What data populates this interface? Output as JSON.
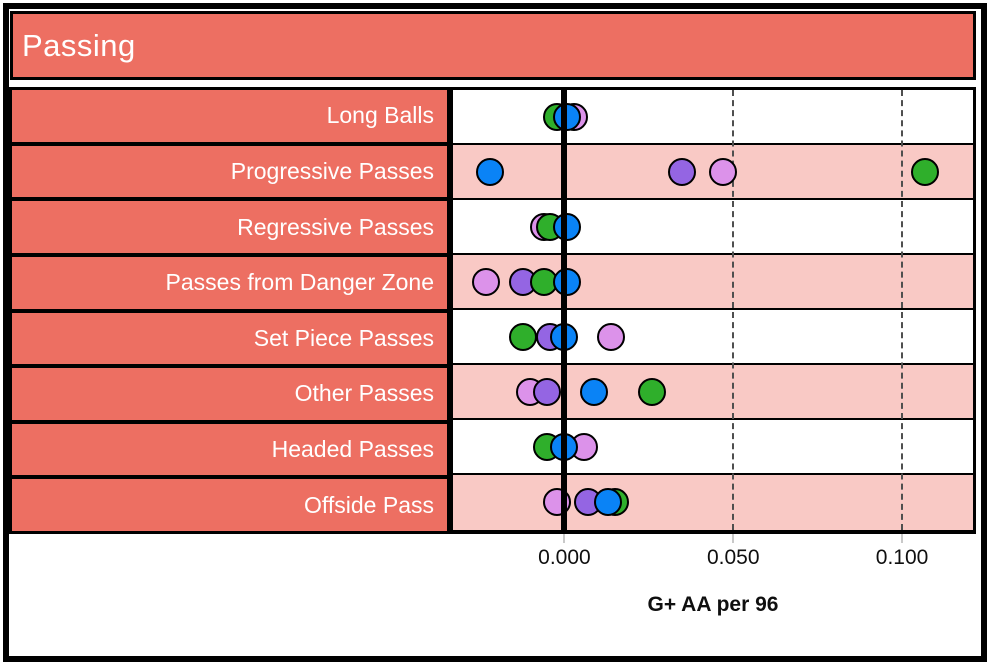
{
  "header": {
    "title": "Passing"
  },
  "colors": {
    "salmon": "#ED6F62",
    "stripe_pink": "#F9C9C5",
    "stripe_white": "#FFFFFF",
    "border_black": "#000000",
    "gridline_gray": "#4F4F4F",
    "series": {
      "blue": "#0A83F6",
      "purple": "#9465E3",
      "plum": "#DC92EA",
      "green": "#2FAF2B"
    }
  },
  "axis": {
    "title": "G+ AA per 96",
    "ticks": [
      {
        "label": "0.000",
        "value": 0.0
      },
      {
        "label": "0.050",
        "value": 0.05
      },
      {
        "label": "0.100",
        "value": 0.1
      }
    ],
    "xmin": -0.033,
    "xmax": 0.121
  },
  "chart_data": {
    "type": "scatter",
    "subtype": "dot-strip-plot",
    "title": "Passing",
    "xlabel": "G+ AA per 96",
    "xlim": [
      -0.033,
      0.121
    ],
    "grid": "vertical-dashed-at-0.050-and-0.100",
    "zero_reference_line": true,
    "categories": [
      "Long Balls",
      "Progressive Passes",
      "Regressive Passes",
      "Passes from Danger Zone",
      "Set Piece Passes",
      "Other Passes",
      "Headed Passes",
      "Offside Pass"
    ],
    "rows": [
      {
        "label": "Long Balls",
        "dots": [
          {
            "series": "green",
            "value": -0.002
          },
          {
            "series": "plum",
            "value": 0.003
          },
          {
            "series": "blue",
            "value": 0.001
          }
        ]
      },
      {
        "label": "Progressive Passes",
        "dots": [
          {
            "series": "blue",
            "value": -0.022
          },
          {
            "series": "purple",
            "value": 0.035
          },
          {
            "series": "plum",
            "value": 0.047
          },
          {
            "series": "green",
            "value": 0.107
          }
        ]
      },
      {
        "label": "Regressive Passes",
        "dots": [
          {
            "series": "plum",
            "value": -0.006
          },
          {
            "series": "green",
            "value": -0.004
          },
          {
            "series": "blue",
            "value": 0.001
          }
        ]
      },
      {
        "label": "Passes from Danger Zone",
        "dots": [
          {
            "series": "plum",
            "value": -0.023
          },
          {
            "series": "purple",
            "value": -0.012
          },
          {
            "series": "green",
            "value": -0.006
          },
          {
            "series": "blue",
            "value": 0.001
          }
        ]
      },
      {
        "label": "Set Piece Passes",
        "dots": [
          {
            "series": "green",
            "value": -0.012
          },
          {
            "series": "purple",
            "value": -0.004
          },
          {
            "series": "blue",
            "value": 0.0
          },
          {
            "series": "plum",
            "value": 0.014
          }
        ]
      },
      {
        "label": "Other Passes",
        "dots": [
          {
            "series": "plum",
            "value": -0.01
          },
          {
            "series": "purple",
            "value": -0.005
          },
          {
            "series": "blue",
            "value": 0.009
          },
          {
            "series": "green",
            "value": 0.026
          }
        ]
      },
      {
        "label": "Headed Passes",
        "dots": [
          {
            "series": "green",
            "value": -0.005
          },
          {
            "series": "plum",
            "value": 0.006
          },
          {
            "series": "blue",
            "value": 0.0
          }
        ]
      },
      {
        "label": "Offside Pass",
        "dots": [
          {
            "series": "plum",
            "value": -0.002
          },
          {
            "series": "purple",
            "value": 0.007
          },
          {
            "series": "green",
            "value": 0.015
          },
          {
            "series": "blue",
            "value": 0.013
          }
        ]
      }
    ]
  }
}
